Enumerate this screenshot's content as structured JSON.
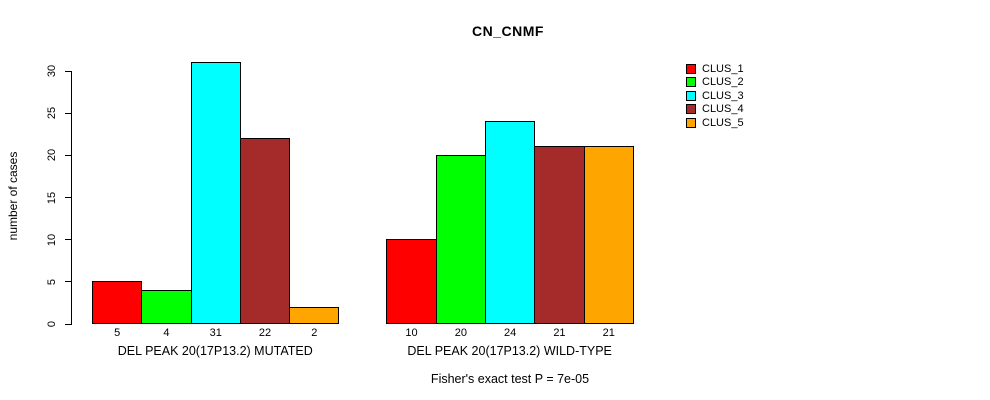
{
  "chart_data": {
    "type": "bar",
    "title": "CN_CNMF",
    "ylabel": "number of cases",
    "ylim": [
      0,
      30
    ],
    "yticks": [
      0,
      5,
      10,
      15,
      20,
      25,
      30
    ],
    "grid": false,
    "legend_position": "right",
    "legend": [
      {
        "label": "CLUS_1",
        "color": "#FF0000"
      },
      {
        "label": "CLUS_2",
        "color": "#00FF00"
      },
      {
        "label": "CLUS_3",
        "color": "#00FFFF"
      },
      {
        "label": "CLUS_4",
        "color": "#A52A2A"
      },
      {
        "label": "CLUS_5",
        "color": "#FFA500"
      }
    ],
    "groups": [
      {
        "label": "DEL PEAK 20(17P13.2) MUTATED",
        "values": [
          5,
          4,
          31,
          22,
          2
        ]
      },
      {
        "label": "DEL PEAK 20(17P13.2) WILD-TYPE",
        "values": [
          10,
          20,
          24,
          21,
          21
        ]
      }
    ],
    "bar_value_labels_shown": true,
    "annotation": "Fisher's exact test P = 7e-05"
  }
}
